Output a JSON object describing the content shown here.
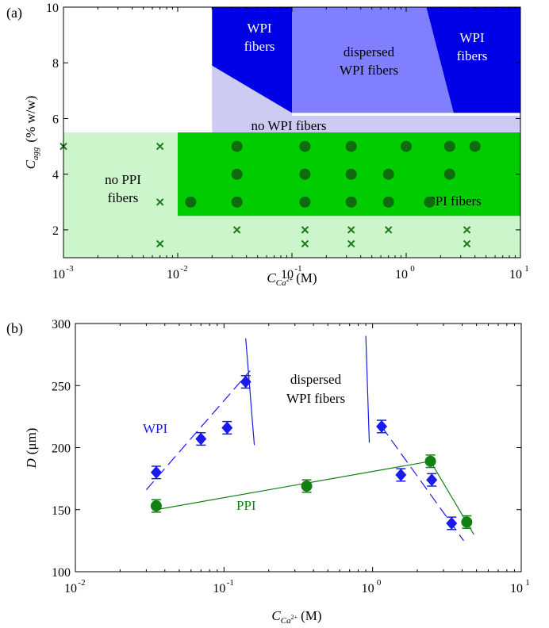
{
  "chart_data": [
    {
      "panel_label": "(a)",
      "type": "scatter",
      "xscale": "log",
      "xlim": [
        0.001,
        10
      ],
      "ylim": [
        1,
        10
      ],
      "xticks": [
        "10",
        "10",
        "10",
        "10",
        "10"
      ],
      "xtick_exponents": [
        "-3",
        "-2",
        "-1",
        "0",
        "1"
      ],
      "xtick_values": [
        0.001,
        0.01,
        0.1,
        1,
        10
      ],
      "yticks": [
        "2",
        "4",
        "6",
        "8",
        "10"
      ],
      "ytick_values": [
        2,
        4,
        6,
        8,
        10
      ],
      "xlabel_main": "C",
      "xlabel_sub": "Ca",
      "xlabel_sup": "2+",
      "xlabel_unit": "(M)",
      "ylabel_main": "C",
      "ylabel_sub": "agg",
      "ylabel_unit": "(% w/w)",
      "regions": [
        {
          "label": "no PPI fibers",
          "lines": [
            "no PPI",
            "fibers"
          ],
          "color": "#ccf5cc"
        },
        {
          "label": "PPI fibers",
          "lines": [
            "PPI fibers"
          ],
          "color": "#00cc00"
        },
        {
          "label": "no WPI fibers",
          "lines": [
            "no WPI fibers"
          ],
          "color": "#ccccf2"
        },
        {
          "label": "WPI fibers",
          "lines": [
            "WPI",
            "fibers"
          ],
          "color": "#0000e6"
        },
        {
          "label": "dispersed WPI fibers",
          "lines": [
            "dispersed",
            "WPI fibers"
          ],
          "color": "#7f7fff"
        },
        {
          "label": "WPI fibers",
          "lines": [
            "WPI",
            "fibers"
          ],
          "color": "#0000e6"
        }
      ],
      "series": [
        {
          "marker": "circle",
          "color": "#0e6b0e",
          "points": [
            [
              0.033,
              5
            ],
            [
              0.13,
              5
            ],
            [
              0.33,
              5
            ],
            [
              1.0,
              5
            ],
            [
              2.4,
              5
            ],
            [
              4.0,
              5
            ],
            [
              0.033,
              4
            ],
            [
              0.13,
              4
            ],
            [
              0.33,
              4
            ],
            [
              0.7,
              4
            ],
            [
              2.4,
              4
            ],
            [
              0.013,
              3
            ],
            [
              0.033,
              3
            ],
            [
              0.13,
              3
            ],
            [
              0.33,
              3
            ],
            [
              0.7,
              3
            ],
            [
              1.6,
              3
            ]
          ]
        },
        {
          "marker": "x",
          "color": "#1a7a1a",
          "points": [
            [
              0.001,
              5
            ],
            [
              0.007,
              5
            ],
            [
              0.007,
              3
            ],
            [
              0.007,
              1.5
            ],
            [
              0.033,
              2
            ],
            [
              0.13,
              2
            ],
            [
              0.13,
              1.5
            ],
            [
              0.33,
              2
            ],
            [
              0.33,
              1.5
            ],
            [
              0.7,
              2
            ],
            [
              3.4,
              2
            ],
            [
              3.4,
              1.5
            ]
          ]
        }
      ]
    },
    {
      "panel_label": "(b)",
      "type": "line",
      "xscale": "log",
      "xlim": [
        0.01,
        10
      ],
      "ylim": [
        100,
        300
      ],
      "xticks": [
        "10",
        "10",
        "10",
        "10"
      ],
      "xtick_exponents": [
        "-2",
        "-1",
        "0",
        "1"
      ],
      "xtick_values": [
        0.01,
        0.1,
        1,
        10
      ],
      "yticks": [
        "100",
        "150",
        "200",
        "250",
        "300"
      ],
      "ytick_values": [
        100,
        150,
        200,
        250,
        300
      ],
      "xlabel_main": "C",
      "xlabel_sub": "Ca",
      "xlabel_sup": "2+",
      "xlabel_unit": "(M)",
      "ylabel_main": "D",
      "ylabel_unit": "(μm)",
      "annotation_lines": [
        "dispersed",
        "WPI fibers"
      ],
      "series": [
        {
          "name": "WPI",
          "color": "#1a1aee",
          "marker": "diamond",
          "x": [
            0.035,
            0.07,
            0.105,
            0.14,
            1.15,
            1.55,
            2.5,
            3.4
          ],
          "y": [
            180,
            207,
            216,
            253,
            217,
            178,
            174,
            139
          ],
          "err": [
            5,
            5,
            5,
            5,
            5,
            5,
            5,
            5
          ],
          "fit_segments": [
            {
              "x": [
                0.03,
                0.15
              ],
              "y": [
                166,
                262
              ]
            },
            {
              "x": [
                1.15,
                4.1
              ],
              "y": [
                217,
                125
              ]
            }
          ]
        },
        {
          "name": "PPI",
          "color": "#128012",
          "marker": "circle",
          "x": [
            0.035,
            0.36,
            2.45,
            4.3
          ],
          "y": [
            153,
            169,
            189,
            140
          ],
          "err": [
            5,
            5,
            5,
            5
          ],
          "fit_segments": [
            {
              "x": [
                0.035,
                2.45
              ],
              "y": [
                150,
                189
              ]
            },
            {
              "x": [
                2.45,
                4.8
              ],
              "y": [
                189,
                130
              ]
            }
          ]
        }
      ],
      "boundary_lines": [
        {
          "x": [
            0.14,
            0.16
          ],
          "y": [
            288,
            202
          ]
        },
        {
          "x": [
            0.9,
            0.95
          ],
          "y": [
            290,
            204
          ]
        }
      ]
    }
  ]
}
